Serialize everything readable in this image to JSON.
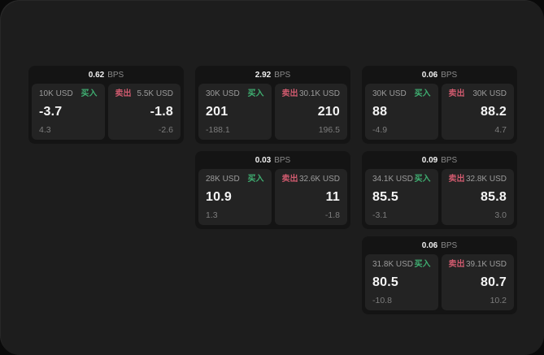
{
  "strings": {
    "bps_suffix": "BPS",
    "buy": "买入",
    "sell": "卖出"
  },
  "colors": {
    "buy": "#3fae71",
    "sell": "#cf5a6e",
    "panel_background": "#1d1d1d",
    "card_background": "#141414",
    "subpanel_background": "#232323"
  },
  "cards": [
    {
      "bps": "0.62",
      "row": 1,
      "col": 1,
      "buy": {
        "amount": "10K USD",
        "value": "-3.7",
        "delta": "4.3"
      },
      "sell": {
        "amount": "5.5K USD",
        "value": "-1.8",
        "delta": "-2.6"
      }
    },
    {
      "bps": "2.92",
      "row": 1,
      "col": 2,
      "buy": {
        "amount": "30K USD",
        "value": "201",
        "delta": "-188.1"
      },
      "sell": {
        "amount": "30.1K USD",
        "value": "210",
        "delta": "196.5"
      }
    },
    {
      "bps": "0.06",
      "row": 1,
      "col": 3,
      "buy": {
        "amount": "30K USD",
        "value": "88",
        "delta": "-4.9"
      },
      "sell": {
        "amount": "30K USD",
        "value": "88.2",
        "delta": "4.7"
      }
    },
    {
      "bps": "0.03",
      "row": 2,
      "col": 2,
      "buy": {
        "amount": "28K USD",
        "value": "10.9",
        "delta": "1.3"
      },
      "sell": {
        "amount": "32.6K USD",
        "value": "11",
        "delta": "-1.8"
      }
    },
    {
      "bps": "0.09",
      "row": 2,
      "col": 3,
      "buy": {
        "amount": "34.1K USD",
        "value": "85.5",
        "delta": "-3.1"
      },
      "sell": {
        "amount": "32.8K USD",
        "value": "85.8",
        "delta": "3.0"
      }
    },
    {
      "bps": "0.06",
      "row": 3,
      "col": 3,
      "buy": {
        "amount": "31.8K USD",
        "value": "80.5",
        "delta": "-10.8"
      },
      "sell": {
        "amount": "39.1K USD",
        "value": "80.7",
        "delta": "10.2"
      }
    }
  ]
}
